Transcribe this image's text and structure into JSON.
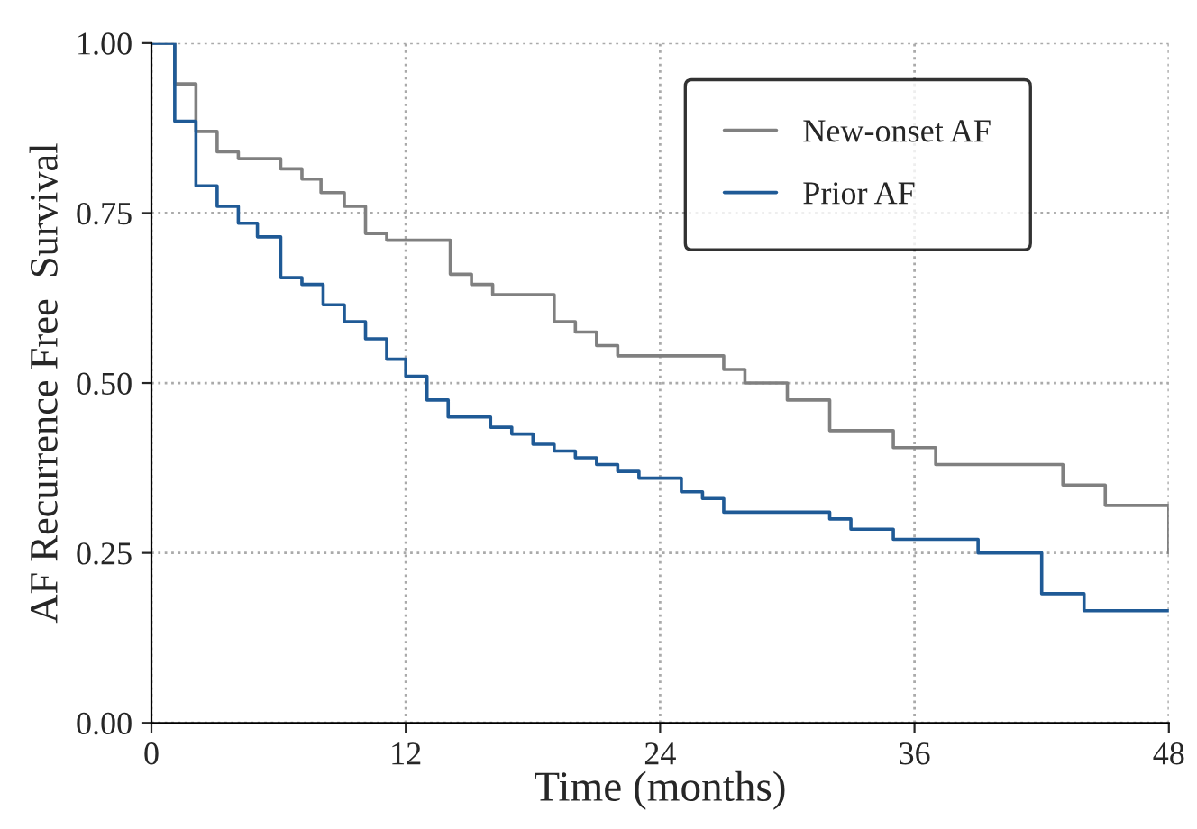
{
  "chart_data": {
    "type": "step",
    "xlabel": "Time (months)",
    "ylabel": "AF Recurrence Free  Survival",
    "series": [
      {
        "name": "New-onset AF",
        "color": "#808080",
        "x": [
          0,
          1.1,
          2.1,
          3.1,
          4.1,
          6.1,
          7.1,
          8,
          9.1,
          10.1,
          11.1,
          14.1,
          15.1,
          16.1,
          19,
          20,
          21,
          22,
          27,
          28,
          30,
          32,
          35,
          37,
          43,
          45,
          48
        ],
        "values": [
          1.0,
          0.94,
          0.87,
          0.84,
          0.83,
          0.815,
          0.8,
          0.78,
          0.76,
          0.72,
          0.71,
          0.66,
          0.645,
          0.63,
          0.59,
          0.575,
          0.555,
          0.54,
          0.52,
          0.5,
          0.475,
          0.43,
          0.405,
          0.38,
          0.35,
          0.32,
          0.25
        ]
      },
      {
        "name": "Prior AF",
        "color": "#1f5a96",
        "x": [
          0,
          1.1,
          2.1,
          3.1,
          4.1,
          5,
          6.1,
          7.1,
          8.1,
          9.1,
          10.1,
          11.1,
          12,
          13,
          14,
          16,
          17,
          18,
          19,
          20,
          21,
          22,
          23,
          25,
          26,
          27,
          32,
          33,
          35,
          39,
          42,
          44,
          48
        ],
        "values": [
          1.0,
          0.885,
          0.79,
          0.76,
          0.735,
          0.715,
          0.655,
          0.645,
          0.615,
          0.59,
          0.565,
          0.535,
          0.51,
          0.475,
          0.45,
          0.435,
          0.425,
          0.41,
          0.4,
          0.39,
          0.38,
          0.37,
          0.36,
          0.34,
          0.33,
          0.31,
          0.3,
          0.285,
          0.27,
          0.25,
          0.19,
          0.165,
          0.165
        ]
      }
    ],
    "xlim": [
      0,
      48
    ],
    "ylim": [
      0,
      1
    ],
    "xticks": [
      0,
      12,
      24,
      36,
      48
    ],
    "yticks": [
      {
        "value": 0,
        "label": "0.00"
      },
      {
        "value": 0.25,
        "label": "0.25"
      },
      {
        "value": 0.5,
        "label": "0.50"
      },
      {
        "value": 0.75,
        "label": "0.75"
      },
      {
        "value": 1,
        "label": "1.00"
      }
    ],
    "grid": true,
    "legend": "top right",
    "line_style": "solid",
    "marker": "none"
  }
}
